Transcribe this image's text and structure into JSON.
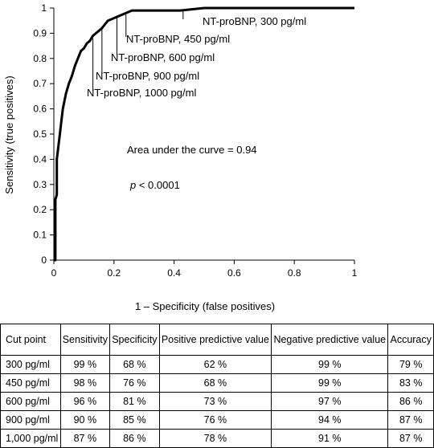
{
  "chart_data": {
    "type": "line",
    "title": "",
    "xlabel": "1 – Specificity (false positives)",
    "ylabel": "Sensitivity (true positives)",
    "xlim": [
      0,
      1
    ],
    "ylim": [
      0,
      1
    ],
    "x_ticks": [
      "0",
      "0.2",
      "0.4",
      "0.6",
      "0.8",
      "1"
    ],
    "y_ticks": [
      "0",
      "0.1",
      "0.2",
      "0.3",
      "0.4",
      "0.5",
      "0.6",
      "0.7",
      "0.8",
      "0.9",
      "1"
    ],
    "grid": false,
    "series": [
      {
        "x": [
          0,
          0.005,
          0.005,
          0.01,
          0.01,
          0.015,
          0.02,
          0.025,
          0.03,
          0.035,
          0.04,
          0.05,
          0.06,
          0.07,
          0.08,
          0.09,
          0.1,
          0.11,
          0.12,
          0.13,
          0.14,
          0.15,
          0.16,
          0.18,
          0.2,
          0.22,
          0.24,
          0.26,
          0.3,
          0.35,
          0.42,
          0.5,
          0.6,
          0.7,
          0.8,
          0.9,
          1
        ],
        "y": [
          0,
          0,
          0.24,
          0.26,
          0.4,
          0.45,
          0.5,
          0.55,
          0.6,
          0.63,
          0.66,
          0.7,
          0.73,
          0.77,
          0.8,
          0.83,
          0.84,
          0.86,
          0.87,
          0.89,
          0.9,
          0.91,
          0.92,
          0.95,
          0.96,
          0.97,
          0.98,
          0.99,
          0.99,
          0.99,
          0.99,
          1,
          1,
          1,
          1,
          1,
          1
        ]
      }
    ],
    "annotations": [
      {
        "text": "NT-proBNP, 300 pg/ml",
        "x": 0.43,
        "y": 0.99
      },
      {
        "text": "NT-proBNP, 450 pg/ml",
        "x": 0.24,
        "y": 0.98
      },
      {
        "text": "NT-proBNP, 600 pg/ml",
        "x": 0.21,
        "y": 0.97
      },
      {
        "text": "NT-proBNP, 900 pg/ml",
        "x": 0.16,
        "y": 0.92
      },
      {
        "text": "NT-proBNP, 1000 pg/ml",
        "x": 0.13,
        "y": 0.88
      }
    ],
    "auc_text": "Area under the curve = 0.94",
    "p_label": "p",
    "p_value": " < 0.0001"
  },
  "table": {
    "headers": [
      "Cut point",
      "Sensitivity",
      "Specificity",
      "Positive predictive value",
      "Negative predictive value",
      "Accuracy"
    ],
    "rows": [
      [
        "300 pg/ml",
        "99 %",
        "68 %",
        "62 %",
        "99 %",
        "79 %"
      ],
      [
        "450 pg/ml",
        "98 %",
        "76 %",
        "68 %",
        "99 %",
        "83 %"
      ],
      [
        "600 pg/ml",
        "96 %",
        "81 %",
        "73 %",
        "97 %",
        "86 %"
      ],
      [
        "900 pg/ml",
        "90 %",
        "85 %",
        "76 %",
        "94 %",
        "87 %"
      ],
      [
        "1,000 pg/ml",
        "87 %",
        "86 %",
        "78 %",
        "91 %",
        "87 %"
      ]
    ]
  }
}
